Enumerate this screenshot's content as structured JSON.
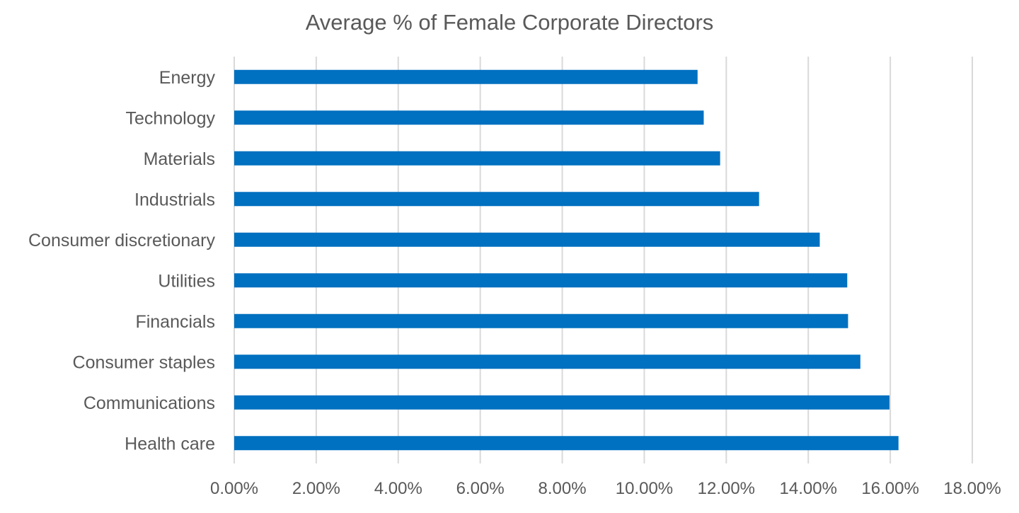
{
  "chart_data": {
    "type": "bar",
    "orientation": "horizontal",
    "title": "Average % of Female Corporate Directors",
    "xlabel": "",
    "ylabel": "",
    "categories": [
      "Energy",
      "Technology",
      "Materials",
      "Industrials",
      "Consumer discretionary",
      "Utilities",
      "Financials",
      "Consumer staples",
      "Communications",
      "Health care"
    ],
    "values": [
      11.3,
      11.45,
      11.85,
      12.8,
      14.28,
      14.95,
      14.97,
      15.27,
      15.98,
      16.2
    ],
    "xlim": [
      0,
      18
    ],
    "x_ticks": [
      0,
      2,
      4,
      6,
      8,
      10,
      12,
      14,
      16,
      18
    ],
    "x_tick_labels": [
      "0.00%",
      "2.00%",
      "4.00%",
      "6.00%",
      "8.00%",
      "10.00%",
      "12.00%",
      "14.00%",
      "16.00%",
      "18.00%"
    ],
    "grid": "vertical",
    "legend": "none",
    "bar_color": "#0070C0",
    "grid_color": "#D9D9D9",
    "text_color": "#595959"
  }
}
